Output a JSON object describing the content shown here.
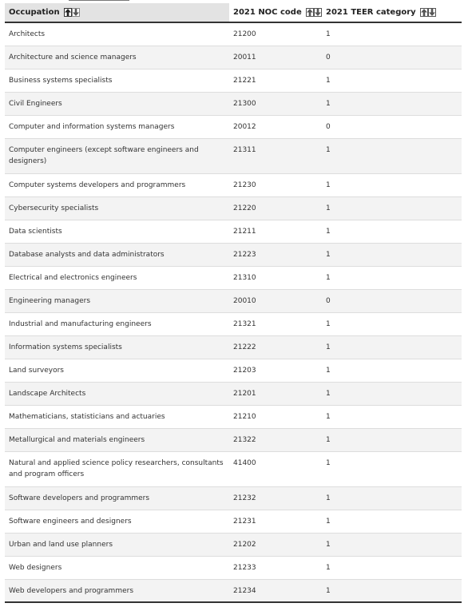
{
  "table": {
    "headers": {
      "occupation": "Occupation",
      "noc": "2021 NOC code",
      "teer": "2021 TEER category"
    },
    "rows": [
      {
        "occupation": "Architects",
        "noc": "21200",
        "teer": "1"
      },
      {
        "occupation": "Architecture and science managers",
        "noc": "20011",
        "teer": "0"
      },
      {
        "occupation": "Business systems specialists",
        "noc": "21221",
        "teer": "1"
      },
      {
        "occupation": "Civil Engineers",
        "noc": "21300",
        "teer": "1"
      },
      {
        "occupation": "Computer and information systems managers",
        "noc": "20012",
        "teer": "0"
      },
      {
        "occupation": "Computer engineers (except software engineers and designers)",
        "noc": "21311",
        "teer": "1"
      },
      {
        "occupation": "Computer systems developers and programmers",
        "noc": "21230",
        "teer": "1"
      },
      {
        "occupation": "Cybersecurity specialists",
        "noc": "21220",
        "teer": "1"
      },
      {
        "occupation": "Data scientists",
        "noc": "21211",
        "teer": "1"
      },
      {
        "occupation": "Database analysts and data administrators",
        "noc": "21223",
        "teer": "1"
      },
      {
        "occupation": "Electrical and electronics engineers",
        "noc": "21310",
        "teer": "1"
      },
      {
        "occupation": "Engineering managers",
        "noc": "20010",
        "teer": "0"
      },
      {
        "occupation": "Industrial and manufacturing engineers",
        "noc": "21321",
        "teer": "1"
      },
      {
        "occupation": "Information systems specialists",
        "noc": "21222",
        "teer": "1"
      },
      {
        "occupation": "Land surveyors",
        "noc": "21203",
        "teer": "1"
      },
      {
        "occupation": "Landscape Architects",
        "noc": "21201",
        "teer": "1"
      },
      {
        "occupation": "Mathematicians, statisticians and actuaries",
        "noc": "21210",
        "teer": "1"
      },
      {
        "occupation": "Metallurgical and materials engineers",
        "noc": "21322",
        "teer": "1"
      },
      {
        "occupation": "Natural and applied science policy researchers, consultants and program officers",
        "noc": "41400",
        "teer": "1"
      },
      {
        "occupation": "Software developers and programmers",
        "noc": "21232",
        "teer": "1"
      },
      {
        "occupation": "Software engineers and designers",
        "noc": "21231",
        "teer": "1"
      },
      {
        "occupation": "Urban and land use planners",
        "noc": "21202",
        "teer": "1"
      },
      {
        "occupation": "Web designers",
        "noc": "21233",
        "teer": "1"
      },
      {
        "occupation": "Web developers and programmers",
        "noc": "21234",
        "teer": "1"
      }
    ]
  },
  "icons": {
    "sort_ascending": "arrow-up-icon",
    "sort_descending": "arrow-down-icon"
  },
  "colors": {
    "header_sorted_bg": "#e3e3e3",
    "row_alt_bg": "#f3f3f3",
    "rule": "#333333"
  }
}
